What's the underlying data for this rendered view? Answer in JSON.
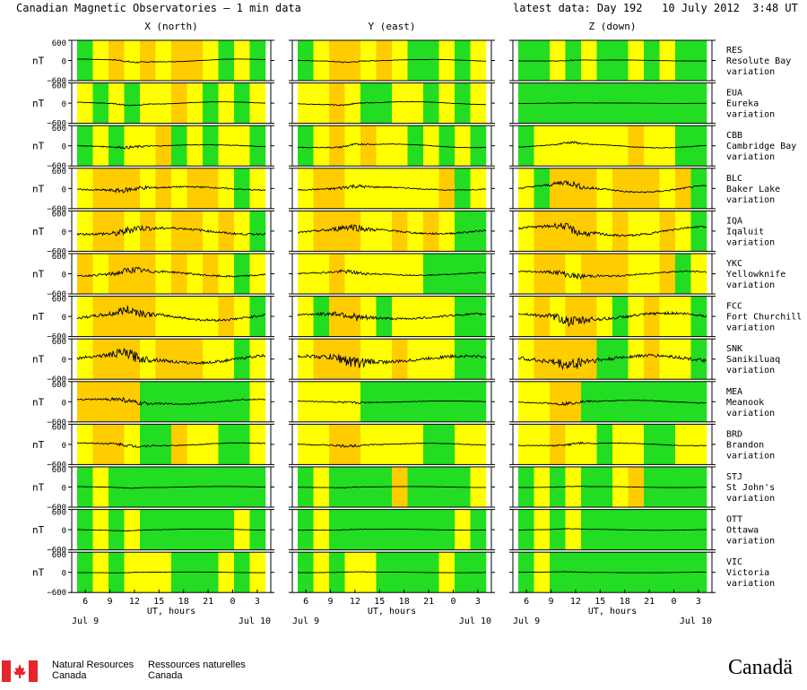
{
  "header": {
    "title": "Canadian Magnetic Observatories — 1 min data",
    "latest": "latest data: Day 192   10 July 2012  3:48 UT"
  },
  "colors": {
    "quiet": "#22dd22",
    "unsettled": "#ffff00",
    "active": "#ffcc00",
    "storm": "#ff9900",
    "trace": "#000000"
  },
  "chart_data": {
    "type": "line",
    "components": [
      {
        "id": "x",
        "label": "X (north)"
      },
      {
        "id": "y",
        "label": "Y (east)"
      },
      {
        "id": "z",
        "label": "Z (down)"
      }
    ],
    "y_unit": "nT",
    "ylim": [
      -600,
      600
    ],
    "y_ticks": [
      "600",
      "0",
      "−600"
    ],
    "x_hours_range": [
      5,
      28
    ],
    "x_ticks": [
      "6",
      "9",
      "12",
      "15",
      "18",
      "21",
      "0",
      "3"
    ],
    "x_axis_label": "UT, hours",
    "date_left": "Jul  9",
    "date_right": "Jul 10",
    "stations": [
      {
        "code": "RES",
        "name": "Resolute Bay",
        "sub": "variation",
        "amp": [
          120,
          90,
          40
        ],
        "noise": [
          12,
          10,
          6
        ],
        "bands": [
          [
            "G",
            "Y",
            "O",
            "Y",
            "O",
            "Y",
            "O",
            "O",
            "Y",
            "G",
            "Y",
            "G"
          ],
          [
            "G",
            "Y",
            "O",
            "O",
            "Y",
            "O",
            "Y",
            "G",
            "G",
            "Y",
            "G",
            "Y"
          ],
          [
            "G",
            "G",
            "Y",
            "G",
            "Y",
            "G",
            "G",
            "Y",
            "G",
            "Y",
            "G",
            "G"
          ]
        ]
      },
      {
        "code": "EUA",
        "name": "Eureka",
        "sub": "variation",
        "amp": [
          110,
          120,
          20
        ],
        "noise": [
          10,
          12,
          4
        ],
        "bands": [
          [
            "Y",
            "G",
            "Y",
            "G",
            "Y",
            "Y",
            "O",
            "Y",
            "G",
            "Y",
            "G",
            "Y"
          ],
          [
            "Y",
            "Y",
            "O",
            "Y",
            "G",
            "G",
            "Y",
            "Y",
            "G",
            "Y",
            "G",
            "Y"
          ],
          [
            "G",
            "G",
            "G",
            "G",
            "G",
            "G",
            "G",
            "G",
            "G",
            "G",
            "G",
            "G"
          ]
        ]
      },
      {
        "code": "CBB",
        "name": "Cambridge Bay",
        "sub": "variation",
        "amp": [
          90,
          150,
          170
        ],
        "noise": [
          20,
          16,
          18
        ],
        "bands": [
          [
            "G",
            "Y",
            "G",
            "Y",
            "Y",
            "O",
            "G",
            "Y",
            "G",
            "Y",
            "Y",
            "G"
          ],
          [
            "G",
            "Y",
            "O",
            "Y",
            "O",
            "Y",
            "Y",
            "G",
            "Y",
            "G",
            "Y",
            "G"
          ],
          [
            "G",
            "Y",
            "Y",
            "Y",
            "Y",
            "Y",
            "Y",
            "O",
            "Y",
            "Y",
            "G",
            "G"
          ]
        ]
      },
      {
        "code": "BLC",
        "name": "Baker Lake",
        "sub": "variation",
        "amp": [
          140,
          130,
          320
        ],
        "noise": [
          40,
          30,
          45
        ],
        "bands": [
          [
            "Y",
            "O",
            "O",
            "O",
            "Y",
            "O",
            "Y",
            "O",
            "O",
            "Y",
            "G",
            "Y"
          ],
          [
            "Y",
            "O",
            "O",
            "Y",
            "Y",
            "Y",
            "Y",
            "Y",
            "Y",
            "O",
            "G",
            "Y"
          ],
          [
            "Y",
            "G",
            "O",
            "O",
            "O",
            "Y",
            "O",
            "O",
            "O",
            "Y",
            "O",
            "G"
          ]
        ]
      },
      {
        "code": "IQA",
        "name": "Iqaluit",
        "sub": "variation",
        "amp": [
          260,
          220,
          380
        ],
        "noise": [
          60,
          55,
          60
        ],
        "bands": [
          [
            "Y",
            "O",
            "O",
            "Y",
            "O",
            "Y",
            "O",
            "O",
            "Y",
            "O",
            "Y",
            "G"
          ],
          [
            "Y",
            "O",
            "O",
            "O",
            "Y",
            "Y",
            "O",
            "Y",
            "O",
            "Y",
            "G",
            "G"
          ],
          [
            "Y",
            "O",
            "O",
            "O",
            "O",
            "Y",
            "O",
            "Y",
            "Y",
            "O",
            "Y",
            "G"
          ]
        ]
      },
      {
        "code": "YKC",
        "name": "Yellowknife",
        "sub": "variation",
        "amp": [
          220,
          120,
          200
        ],
        "noise": [
          50,
          30,
          45
        ],
        "bands": [
          [
            "O",
            "Y",
            "O",
            "O",
            "O",
            "Y",
            "O",
            "Y",
            "O",
            "Y",
            "G",
            "Y"
          ],
          [
            "Y",
            "Y",
            "O",
            "Y",
            "Y",
            "Y",
            "Y",
            "Y",
            "G",
            "G",
            "G",
            "G"
          ],
          [
            "Y",
            "O",
            "O",
            "Y",
            "O",
            "O",
            "O",
            "Y",
            "Y",
            "O",
            "G",
            "Y"
          ]
        ]
      },
      {
        "code": "FCC",
        "name": "Fort Churchill",
        "sub": "variation",
        "amp": [
          320,
          200,
          280
        ],
        "noise": [
          70,
          60,
          80
        ],
        "bands": [
          [
            "Y",
            "O",
            "O",
            "O",
            "O",
            "Y",
            "Y",
            "Y",
            "Y",
            "O",
            "Y",
            "G"
          ],
          [
            "Y",
            "G",
            "O",
            "O",
            "Y",
            "G",
            "Y",
            "Y",
            "Y",
            "Y",
            "G",
            "G"
          ],
          [
            "Y",
            "O",
            "Y",
            "O",
            "O",
            "Y",
            "G",
            "Y",
            "O",
            "Y",
            "Y",
            "G"
          ]
        ]
      },
      {
        "code": "SNK",
        "name": "Sanikiluaq",
        "sub": "variation",
        "amp": [
          330,
          250,
          300
        ],
        "noise": [
          80,
          90,
          95
        ],
        "bands": [
          [
            "Y",
            "O",
            "O",
            "O",
            "Y",
            "O",
            "O",
            "O",
            "Y",
            "Y",
            "G",
            "Y"
          ],
          [
            "Y",
            "O",
            "O",
            "O",
            "Y",
            "Y",
            "O",
            "Y",
            "Y",
            "Y",
            "G",
            "G"
          ],
          [
            "Y",
            "O",
            "O",
            "O",
            "O",
            "G",
            "G",
            "Y",
            "O",
            "Y",
            "Y",
            "G"
          ]
        ]
      },
      {
        "code": "MEA",
        "name": "Meanook",
        "sub": "variation",
        "amp": [
          200,
          60,
          120
        ],
        "noise": [
          40,
          20,
          25
        ],
        "bands": [
          [
            "O",
            "O",
            "O",
            "O",
            "G",
            "G",
            "G",
            "G",
            "G",
            "G",
            "G",
            "Y"
          ],
          [
            "Y",
            "Y",
            "Y",
            "Y",
            "G",
            "G",
            "G",
            "G",
            "G",
            "G",
            "G",
            "G"
          ],
          [
            "Y",
            "Y",
            "O",
            "O",
            "G",
            "G",
            "G",
            "G",
            "G",
            "G",
            "G",
            "G"
          ]
        ]
      },
      {
        "code": "BRD",
        "name": "Brandon",
        "sub": "variation",
        "amp": [
          120,
          90,
          110
        ],
        "noise": [
          25,
          22,
          18
        ],
        "bands": [
          [
            "Y",
            "O",
            "O",
            "Y",
            "G",
            "G",
            "O",
            "Y",
            "Y",
            "G",
            "G",
            "Y"
          ],
          [
            "Y",
            "Y",
            "O",
            "O",
            "Y",
            "Y",
            "Y",
            "Y",
            "G",
            "G",
            "Y",
            "Y"
          ],
          [
            "Y",
            "Y",
            "O",
            "Y",
            "Y",
            "G",
            "Y",
            "Y",
            "G",
            "G",
            "Y",
            "Y"
          ]
        ]
      },
      {
        "code": "STJ",
        "name": "St John's",
        "sub": "variation",
        "amp": [
          50,
          40,
          40
        ],
        "noise": [
          6,
          6,
          5
        ],
        "bands": [
          [
            "G",
            "Y",
            "G",
            "G",
            "G",
            "G",
            "G",
            "G",
            "G",
            "G",
            "G",
            "G"
          ],
          [
            "G",
            "Y",
            "G",
            "G",
            "G",
            "G",
            "O",
            "G",
            "G",
            "G",
            "G",
            "Y"
          ],
          [
            "G",
            "Y",
            "G",
            "Y",
            "G",
            "G",
            "Y",
            "O",
            "G",
            "G",
            "G",
            "G"
          ]
        ]
      },
      {
        "code": "OTT",
        "name": "Ottawa",
        "sub": "variation",
        "amp": [
          60,
          40,
          50
        ],
        "noise": [
          8,
          6,
          6
        ],
        "bands": [
          [
            "G",
            "Y",
            "G",
            "Y",
            "G",
            "G",
            "G",
            "G",
            "G",
            "G",
            "Y",
            "G"
          ],
          [
            "G",
            "Y",
            "G",
            "G",
            "G",
            "G",
            "G",
            "G",
            "G",
            "G",
            "Y",
            "G"
          ],
          [
            "G",
            "Y",
            "G",
            "Y",
            "G",
            "G",
            "G",
            "G",
            "G",
            "G",
            "G",
            "G"
          ]
        ]
      },
      {
        "code": "VIC",
        "name": "Victoria",
        "sub": "variation",
        "amp": [
          30,
          30,
          30
        ],
        "noise": [
          6,
          5,
          5
        ],
        "bands": [
          [
            "G",
            "Y",
            "G",
            "Y",
            "Y",
            "Y",
            "G",
            "G",
            "G",
            "Y",
            "G",
            "Y"
          ],
          [
            "G",
            "Y",
            "G",
            "Y",
            "Y",
            "G",
            "G",
            "G",
            "G",
            "Y",
            "G",
            "G"
          ],
          [
            "G",
            "Y",
            "G",
            "G",
            "G",
            "G",
            "G",
            "G",
            "G",
            "G",
            "G",
            "G"
          ]
        ]
      }
    ]
  },
  "footer": {
    "nrc_en_1": "Natural Resources",
    "nrc_en_2": "Canada",
    "nrc_fr_1": "Ressources naturelles",
    "nrc_fr_2": "Canada",
    "wordmark": "Canadä",
    "flag_icon": "canada-flag-icon"
  }
}
